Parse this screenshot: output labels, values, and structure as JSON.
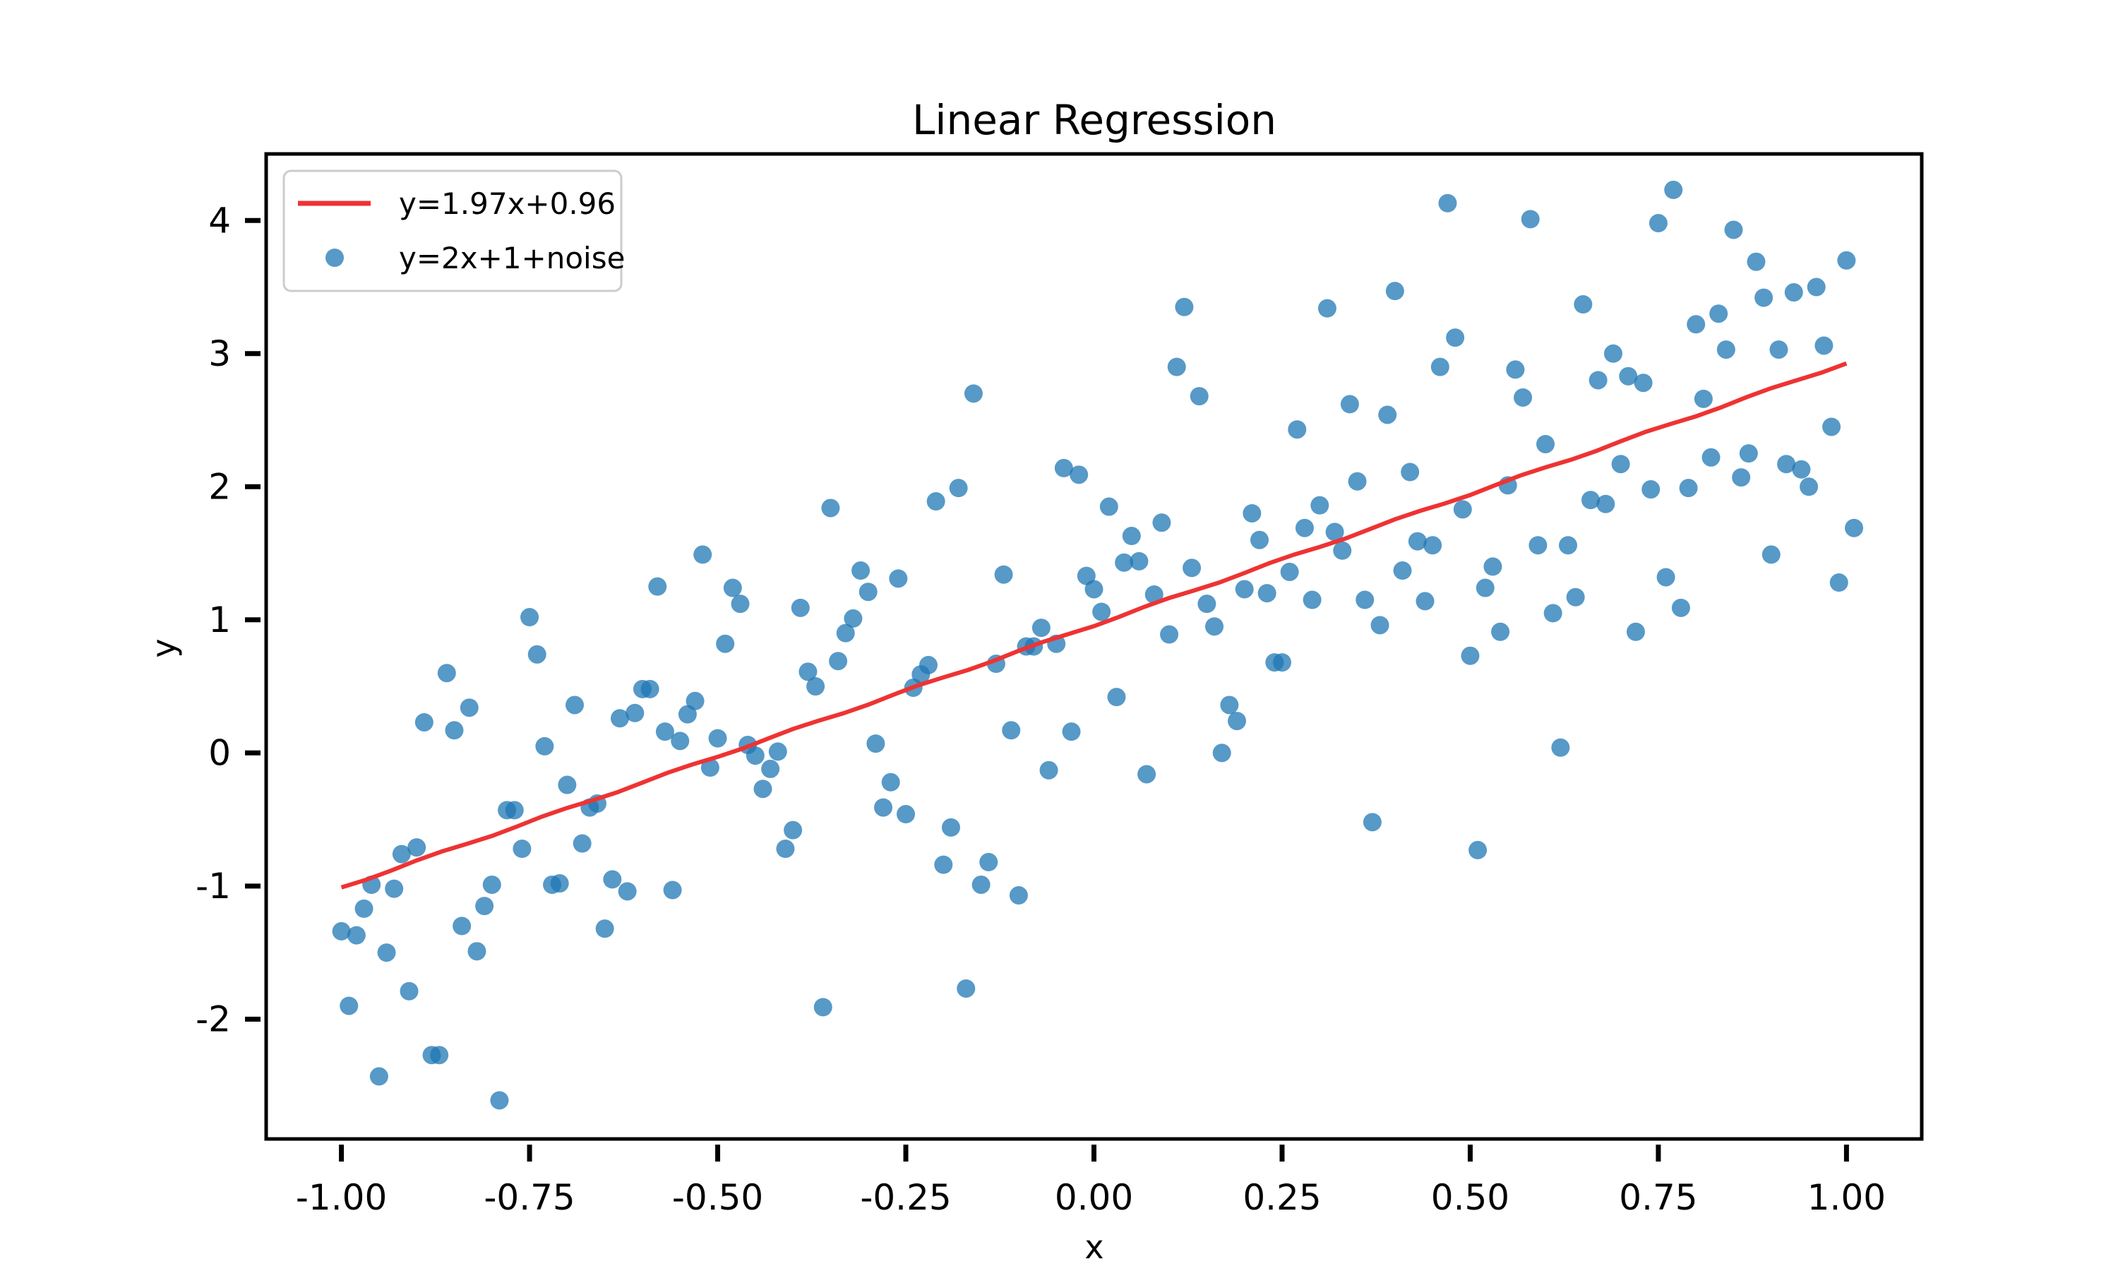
{
  "chart_data": {
    "type": "scatter",
    "title": "Linear Regression",
    "xlabel": "x",
    "ylabel": "y",
    "xlim": [
      -1.1,
      1.1
    ],
    "ylim": [
      -2.9,
      4.5
    ],
    "x_ticks": [
      -1.0,
      -0.75,
      -0.5,
      -0.25,
      0.0,
      0.25,
      0.5,
      0.75,
      1.0
    ],
    "x_tick_labels": [
      "-1.00",
      "-0.75",
      "-0.50",
      "-0.25",
      "0.00",
      "0.25",
      "0.50",
      "0.75",
      "1.00"
    ],
    "y_ticks": [
      -2,
      -1,
      0,
      1,
      2,
      3,
      4
    ],
    "y_tick_labels": [
      "-2",
      "-1",
      "0",
      "1",
      "2",
      "3",
      "4"
    ],
    "grid": false,
    "legend_position": "top-left",
    "colors": {
      "fit": "#ee3333",
      "points": "#1f77b4"
    },
    "fit_line": {
      "name": "y=1.97x+0.96",
      "slope": 1.97,
      "intercept": 0.96,
      "x_range": [
        -1.0,
        1.0
      ]
    },
    "scatter": {
      "name": "y=2x+1+noise",
      "points": [
        [
          -1.0,
          -1.34
        ],
        [
          -0.99,
          -1.9
        ],
        [
          -0.98,
          -1.37
        ],
        [
          -0.97,
          -1.17
        ],
        [
          -0.96,
          -0.99
        ],
        [
          -0.95,
          -2.43
        ],
        [
          -0.94,
          -1.5
        ],
        [
          -0.93,
          -1.02
        ],
        [
          -0.92,
          -0.76
        ],
        [
          -0.91,
          -1.79
        ],
        [
          -0.9,
          -0.71
        ],
        [
          -0.89,
          0.23
        ],
        [
          -0.88,
          -2.27
        ],
        [
          -0.87,
          -2.27
        ],
        [
          -0.86,
          0.6
        ],
        [
          -0.85,
          0.17
        ],
        [
          -0.84,
          -1.3
        ],
        [
          -0.83,
          0.34
        ],
        [
          -0.82,
          -1.49
        ],
        [
          -0.81,
          -1.15
        ],
        [
          -0.8,
          -0.99
        ],
        [
          -0.79,
          -2.61
        ],
        [
          -0.78,
          -0.43
        ],
        [
          -0.77,
          -0.43
        ],
        [
          -0.76,
          -0.72
        ],
        [
          -0.75,
          1.02
        ],
        [
          -0.74,
          0.74
        ],
        [
          -0.73,
          0.05
        ],
        [
          -0.72,
          -0.99
        ],
        [
          -0.71,
          -0.98
        ],
        [
          -0.7,
          -0.24
        ],
        [
          -0.69,
          0.36
        ],
        [
          -0.68,
          -0.68
        ],
        [
          -0.67,
          -0.41
        ],
        [
          -0.66,
          -0.38
        ],
        [
          -0.65,
          -1.32
        ],
        [
          -0.64,
          -0.95
        ],
        [
          -0.63,
          0.26
        ],
        [
          -0.62,
          -1.04
        ],
        [
          -0.61,
          0.3
        ],
        [
          -0.6,
          0.48
        ],
        [
          -0.59,
          0.48
        ],
        [
          -0.58,
          1.25
        ],
        [
          -0.57,
          0.16
        ],
        [
          -0.56,
          -1.03
        ],
        [
          -0.55,
          0.09
        ],
        [
          -0.54,
          0.29
        ],
        [
          -0.53,
          0.39
        ],
        [
          -0.52,
          1.49
        ],
        [
          -0.51,
          -0.11
        ],
        [
          -0.5,
          0.11
        ],
        [
          -0.49,
          0.82
        ],
        [
          -0.48,
          1.24
        ],
        [
          -0.47,
          1.12
        ],
        [
          -0.46,
          0.06
        ],
        [
          -0.45,
          -0.02
        ],
        [
          -0.44,
          -0.27
        ],
        [
          -0.43,
          -0.12
        ],
        [
          -0.42,
          0.01
        ],
        [
          -0.41,
          -0.72
        ],
        [
          -0.4,
          -0.58
        ],
        [
          -0.39,
          1.09
        ],
        [
          -0.38,
          0.61
        ],
        [
          -0.37,
          0.5
        ],
        [
          -0.36,
          -1.91
        ],
        [
          -0.35,
          1.84
        ],
        [
          -0.34,
          0.69
        ],
        [
          -0.33,
          0.9
        ],
        [
          -0.32,
          1.01
        ],
        [
          -0.31,
          1.37
        ],
        [
          -0.3,
          1.21
        ],
        [
          -0.29,
          0.07
        ],
        [
          -0.28,
          -0.41
        ],
        [
          -0.27,
          -0.22
        ],
        [
          -0.26,
          1.31
        ],
        [
          -0.25,
          -0.46
        ],
        [
          -0.24,
          0.49
        ],
        [
          -0.23,
          0.59
        ],
        [
          -0.22,
          0.66
        ],
        [
          -0.21,
          1.89
        ],
        [
          -0.2,
          -0.84
        ],
        [
          -0.19,
          -0.56
        ],
        [
          -0.18,
          1.99
        ],
        [
          -0.17,
          -1.77
        ],
        [
          -0.16,
          2.7
        ],
        [
          -0.15,
          -0.99
        ],
        [
          -0.14,
          -0.82
        ],
        [
          -0.13,
          0.67
        ],
        [
          -0.12,
          1.34
        ],
        [
          -0.11,
          0.17
        ],
        [
          -0.1,
          -1.07
        ],
        [
          -0.09,
          0.8
        ],
        [
          -0.08,
          0.8
        ],
        [
          -0.07,
          0.94
        ],
        [
          -0.06,
          -0.13
        ],
        [
          -0.05,
          0.82
        ],
        [
          -0.04,
          2.14
        ],
        [
          -0.03,
          0.16
        ],
        [
          -0.02,
          2.09
        ],
        [
          -0.01,
          1.33
        ],
        [
          0.0,
          1.23
        ],
        [
          0.01,
          1.06
        ],
        [
          0.02,
          1.85
        ],
        [
          0.03,
          0.42
        ],
        [
          0.04,
          1.43
        ],
        [
          0.05,
          1.63
        ],
        [
          0.06,
          1.44
        ],
        [
          0.07,
          -0.16
        ],
        [
          0.08,
          1.19
        ],
        [
          0.09,
          1.73
        ],
        [
          0.1,
          0.89
        ],
        [
          0.11,
          2.9
        ],
        [
          0.12,
          3.35
        ],
        [
          0.13,
          1.39
        ],
        [
          0.14,
          2.68
        ],
        [
          0.15,
          1.12
        ],
        [
          0.16,
          0.95
        ],
        [
          0.17,
          0.0
        ],
        [
          0.18,
          0.36
        ],
        [
          0.19,
          0.24
        ],
        [
          0.2,
          1.23
        ],
        [
          0.21,
          1.8
        ],
        [
          0.22,
          1.6
        ],
        [
          0.23,
          1.2
        ],
        [
          0.24,
          0.68
        ],
        [
          0.25,
          0.68
        ],
        [
          0.26,
          1.36
        ],
        [
          0.27,
          2.43
        ],
        [
          0.28,
          1.69
        ],
        [
          0.29,
          1.15
        ],
        [
          0.3,
          1.86
        ],
        [
          0.31,
          3.34
        ],
        [
          0.32,
          1.66
        ],
        [
          0.33,
          1.52
        ],
        [
          0.34,
          2.62
        ],
        [
          0.35,
          2.04
        ],
        [
          0.36,
          1.15
        ],
        [
          0.37,
          -0.52
        ],
        [
          0.38,
          0.96
        ],
        [
          0.39,
          2.54
        ],
        [
          0.4,
          3.47
        ],
        [
          0.41,
          1.37
        ],
        [
          0.42,
          2.11
        ],
        [
          0.43,
          1.59
        ],
        [
          0.44,
          1.14
        ],
        [
          0.45,
          1.56
        ],
        [
          0.46,
          2.9
        ],
        [
          0.47,
          4.13
        ],
        [
          0.48,
          3.12
        ],
        [
          0.49,
          1.83
        ],
        [
          0.5,
          0.73
        ],
        [
          0.51,
          -0.73
        ],
        [
          0.52,
          1.24
        ],
        [
          0.53,
          1.4
        ],
        [
          0.54,
          0.91
        ],
        [
          0.55,
          2.01
        ],
        [
          0.56,
          2.88
        ],
        [
          0.57,
          2.67
        ],
        [
          0.58,
          4.01
        ],
        [
          0.59,
          1.56
        ],
        [
          0.6,
          2.32
        ],
        [
          0.61,
          1.05
        ],
        [
          0.62,
          0.04
        ],
        [
          0.63,
          1.56
        ],
        [
          0.64,
          1.17
        ],
        [
          0.65,
          3.37
        ],
        [
          0.66,
          1.9
        ],
        [
          0.67,
          2.8
        ],
        [
          0.68,
          1.87
        ],
        [
          0.69,
          3.0
        ],
        [
          0.7,
          2.17
        ],
        [
          0.71,
          2.83
        ],
        [
          0.72,
          0.91
        ],
        [
          0.73,
          2.78
        ],
        [
          0.74,
          1.98
        ],
        [
          0.75,
          3.98
        ],
        [
          0.76,
          1.32
        ],
        [
          0.77,
          4.23
        ],
        [
          0.78,
          1.09
        ],
        [
          0.79,
          1.99
        ],
        [
          0.8,
          3.22
        ],
        [
          0.81,
          2.66
        ],
        [
          0.82,
          2.22
        ],
        [
          0.83,
          3.3
        ],
        [
          0.84,
          3.03
        ],
        [
          0.85,
          3.93
        ],
        [
          0.86,
          2.07
        ],
        [
          0.87,
          2.25
        ],
        [
          0.88,
          3.69
        ],
        [
          0.89,
          3.42
        ],
        [
          0.9,
          1.49
        ],
        [
          0.91,
          3.03
        ],
        [
          0.92,
          2.17
        ],
        [
          0.93,
          3.46
        ],
        [
          0.94,
          2.13
        ],
        [
          0.95,
          2.0
        ],
        [
          0.96,
          3.5
        ],
        [
          0.97,
          3.06
        ],
        [
          0.98,
          2.45
        ],
        [
          0.99,
          1.28
        ],
        [
          1.0,
          3.7
        ],
        [
          1.01,
          1.69
        ]
      ]
    }
  }
}
